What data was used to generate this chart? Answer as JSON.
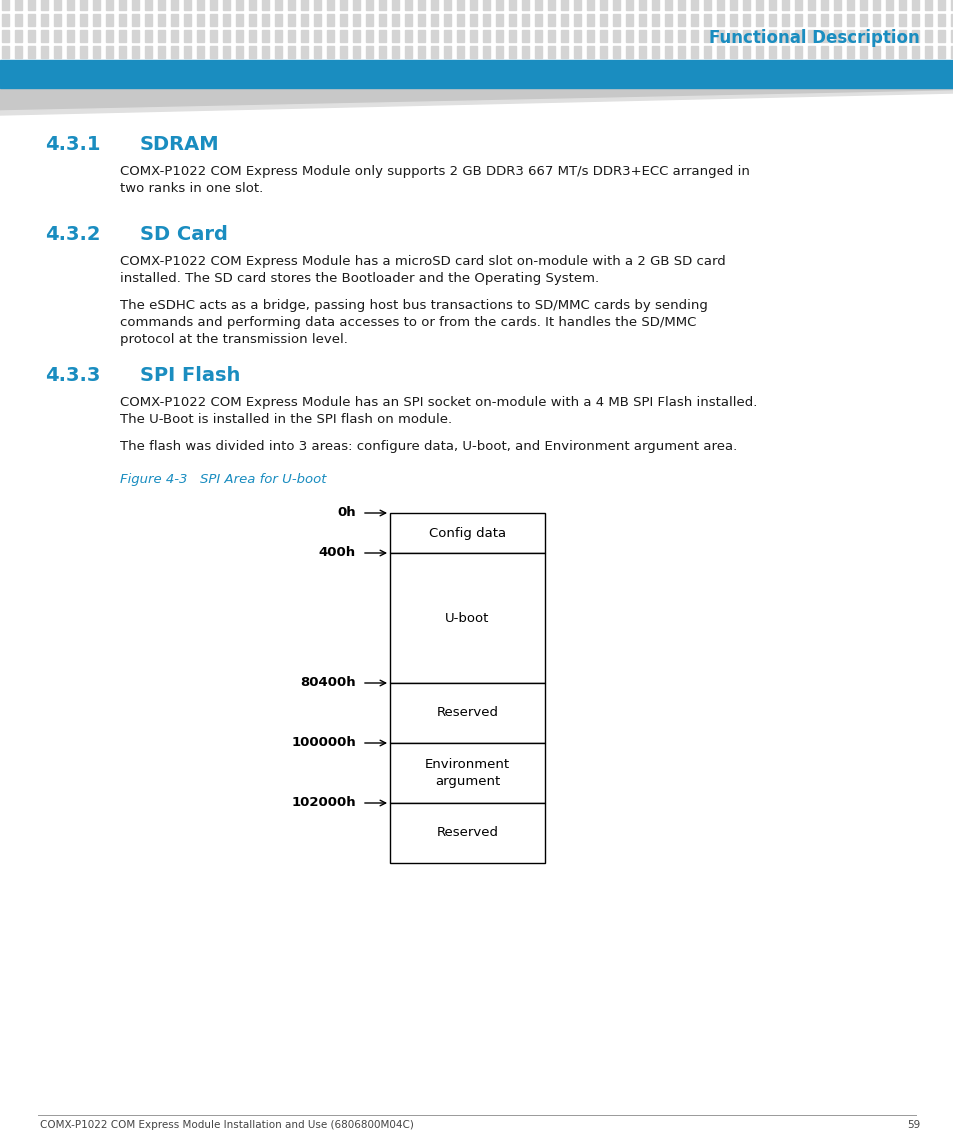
{
  "page_bg": "#ffffff",
  "header_dot_color": "#d4d4d4",
  "header_bar_color": "#1a8dc0",
  "header_text": "Functional Description",
  "header_text_color": "#1a8dc0",
  "footer_text": "COMX-P1022 COM Express Module Installation and Use (6806800M04C)",
  "footer_page": "59",
  "footer_color": "#444444",
  "section_number_color": "#1a8dc0",
  "section_title_color": "#1a8dc0",
  "body_text_color": "#1a1a1a",
  "figure_label_color": "#1a8dc0",
  "sections": [
    {
      "number": "4.3.1",
      "title": "SDRAM",
      "paragraphs": [
        "COMX-P1022 COM Express Module only supports 2 GB DDR3 667 MT/s DDR3+ECC arranged in\ntwo ranks in one slot."
      ]
    },
    {
      "number": "4.3.2",
      "title": "SD Card",
      "paragraphs": [
        "COMX-P1022 COM Express Module has a microSD card slot on-module with a 2 GB SD card\ninstalled. The SD card stores the Bootloader and the Operating System.",
        "The eSDHC acts as a bridge, passing host bus transactions to SD/MMC cards by sending\ncommands and performing data accesses to or from the cards. It handles the SD/MMC\nprotocol at the transmission level."
      ]
    },
    {
      "number": "4.3.3",
      "title": "SPI Flash",
      "paragraphs": [
        "COMX-P1022 COM Express Module has an SPI socket on-module with a 4 MB SPI Flash installed.\nThe U-Boot is installed in the SPI flash on module.",
        "The flash was divided into 3 areas: configure data, U-boot, and Environment argument area."
      ]
    }
  ],
  "figure_label": "Figure 4-3",
  "figure_title": "SPI Area for U-boot",
  "diagram": {
    "addresses": [
      "0h",
      "400h",
      "80400h",
      "100000h",
      "102000h"
    ],
    "segments": [
      "Config data",
      "U-boot",
      "Reserved",
      "Environment\nargument",
      "Reserved"
    ],
    "segment_heights": [
      40,
      130,
      60,
      60,
      60
    ]
  }
}
